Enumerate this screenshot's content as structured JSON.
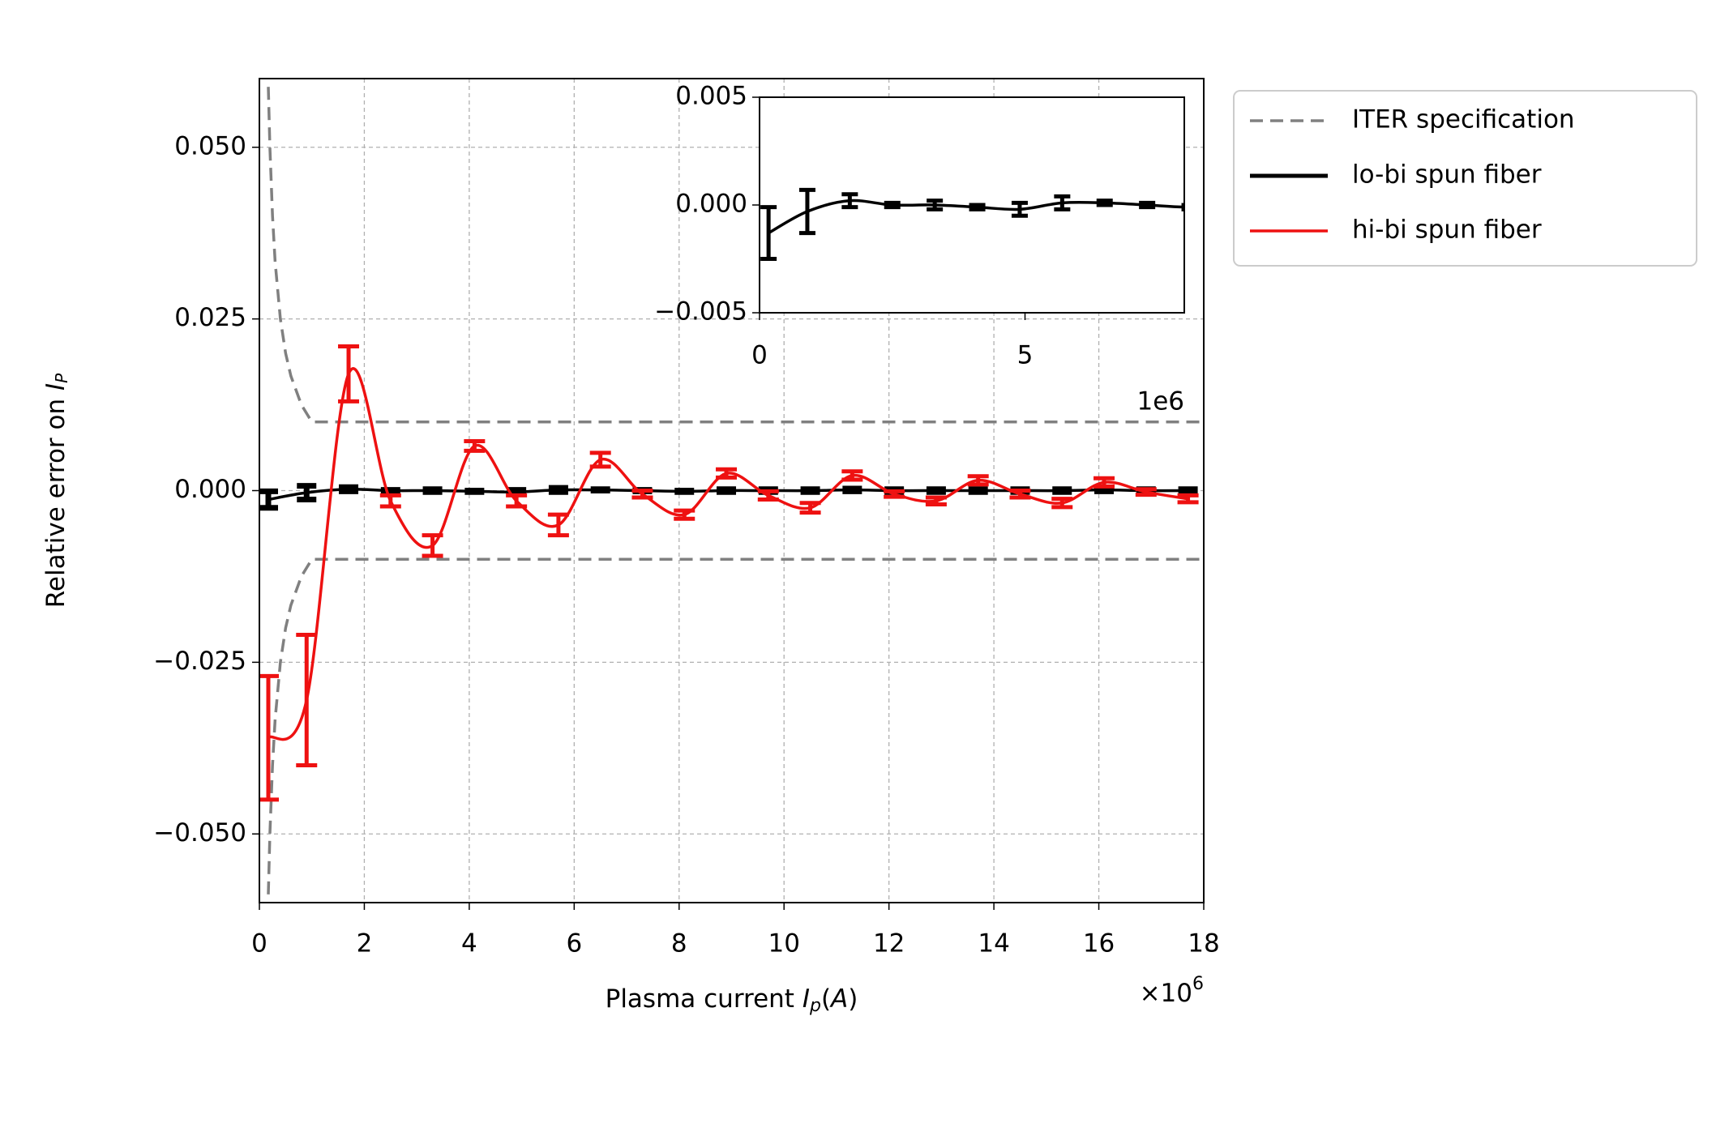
{
  "chart_data": {
    "type": "errorbar",
    "xlabel": [
      "Plasma current ",
      "I",
      "p",
      "(",
      "A",
      ")"
    ],
    "ylabel": [
      "Relative error on ",
      "I",
      "P"
    ],
    "x_offset": [
      "×10",
      "6"
    ],
    "xlim": [
      0,
      18
    ],
    "xticks": [
      0,
      2,
      4,
      6,
      8,
      10,
      12,
      14,
      16,
      18
    ],
    "ylim": [
      -0.06,
      0.06
    ],
    "yticks": [
      {
        "value": -0.05,
        "label": "−0.050"
      },
      {
        "value": -0.025,
        "label": "−0.025"
      },
      {
        "value": 0,
        "label": "0.000"
      },
      {
        "value": 0.025,
        "label": "0.025"
      },
      {
        "value": 0.05,
        "label": "0.050"
      }
    ],
    "grid": true,
    "legend": "outside",
    "series": [
      {
        "name": "ITER specification",
        "color": "#808080",
        "dash": true,
        "x": [
          0.17,
          0.2,
          0.25,
          0.3,
          0.4,
          0.5,
          0.6,
          0.8,
          1.0,
          2,
          4,
          6,
          8,
          10,
          12,
          14,
          16,
          18
        ],
        "values": [
          0.0588,
          0.05,
          0.04,
          0.0333,
          0.025,
          0.02,
          0.0167,
          0.0125,
          0.01,
          0.01,
          0.01,
          0.01,
          0.01,
          0.01,
          0.01,
          0.01,
          0.01,
          0.01
        ],
        "lower": [
          -0.0588,
          -0.05,
          -0.04,
          -0.0333,
          -0.025,
          -0.02,
          -0.0167,
          -0.0125,
          -0.01,
          -0.01,
          -0.01,
          -0.01,
          -0.01,
          -0.01,
          -0.01,
          -0.01,
          -0.01,
          -0.01
        ]
      },
      {
        "name": "lo-bi spun fiber",
        "color": "#000000",
        "inset": true,
        "x": [
          0.17,
          0.9,
          1.7,
          2.5,
          3.3,
          4.1,
          4.9,
          5.7,
          6.5,
          7.3,
          8.1,
          8.9,
          9.7,
          10.5,
          11.3,
          12.1,
          12.9,
          13.7,
          14.5,
          15.3,
          16.1,
          16.9,
          17.7
        ],
        "values": [
          -0.0013,
          -0.0003,
          0.0002,
          0,
          0,
          -0.0001,
          -0.0002,
          0.0001,
          0.0001,
          0,
          -0.0001,
          0,
          0,
          0,
          0.0001,
          0,
          0,
          0,
          0,
          0,
          0.0001,
          0,
          0
        ],
        "errors": [
          0.0012,
          0.001,
          0.0003,
          0.0001,
          0.0002,
          0.0001,
          0.0003,
          0.0003,
          0.0001,
          0.0001,
          0.0001,
          0.0002,
          0.0002,
          0.0002,
          0.0002,
          0.0002,
          0.0002,
          0.0002,
          0.0002,
          0.0002,
          0.0002,
          0.0002,
          0.0002
        ]
      },
      {
        "name": "hi-bi spun fiber",
        "color": "#ee1111",
        "x": [
          0.17,
          0.9,
          1.7,
          2.5,
          3.3,
          4.1,
          4.9,
          5.7,
          6.5,
          7.3,
          8.1,
          8.9,
          9.7,
          10.5,
          11.3,
          12.1,
          12.9,
          13.7,
          14.5,
          15.3,
          16.1,
          16.9,
          17.7
        ],
        "values": [
          -0.036,
          -0.0305,
          0.017,
          -0.0015,
          -0.008,
          0.0065,
          -0.0015,
          -0.005,
          0.0045,
          -0.0005,
          -0.0035,
          0.0025,
          -0.0007,
          -0.0025,
          0.0022,
          -0.0005,
          -0.0015,
          0.0015,
          -0.0005,
          -0.0018,
          0.0012,
          -0.0002,
          -0.0012
        ],
        "errors": [
          0.009,
          0.0095,
          0.004,
          0.0008,
          0.0015,
          0.0007,
          0.0008,
          0.0015,
          0.001,
          0.0005,
          0.0006,
          0.0006,
          0.0006,
          0.0007,
          0.0006,
          0.0004,
          0.0005,
          0.0006,
          0.0005,
          0.0006,
          0.0006,
          0.0004,
          0.0005
        ]
      }
    ],
    "inset": {
      "xlim": [
        0,
        8
      ],
      "xticks": [
        0,
        5
      ],
      "x_offset": "1e6",
      "ylim": [
        -0.005,
        0.005
      ],
      "yticks": [
        {
          "value": -0.005,
          "label": "−0.005"
        },
        {
          "value": 0,
          "label": "0.000"
        },
        {
          "value": 0.005,
          "label": "0.005"
        }
      ]
    }
  }
}
